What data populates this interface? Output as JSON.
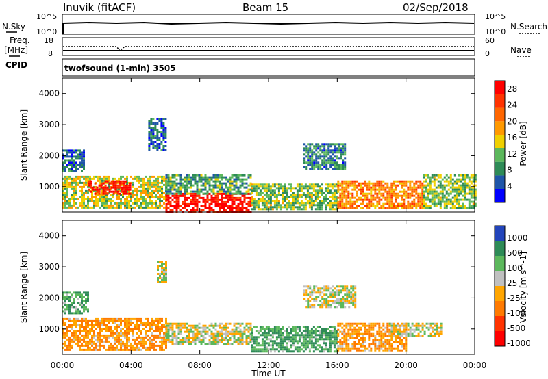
{
  "header": {
    "station": "Inuvik (fitACF)",
    "beam": "Beam 15",
    "date": "02/Sep/2018"
  },
  "nsky_panel": {
    "left_label": "N.Sky",
    "right_label": "N.Search",
    "left_ticks": [
      "10^5",
      "10^0"
    ],
    "right_ticks": [
      "10^5",
      "10^0"
    ]
  },
  "freq_panel": {
    "left_label_1": "Freq.",
    "left_label_2": "[MHz]",
    "left_label_3": "CPID",
    "right_label": "Nave",
    "left_ticks": [
      "18",
      "8"
    ],
    "right_ticks": [
      "60",
      "0"
    ]
  },
  "cpid_text": "twofsound (1-min) 3505",
  "x_axis": {
    "label": "Time UT",
    "ticks": [
      "00:00",
      "04:00",
      "08:00",
      "12:00",
      "16:00",
      "20:00",
      "00:00"
    ]
  },
  "y_axis": {
    "label": "Slant Range [km]",
    "ticks": [
      "1000",
      "2000",
      "3000",
      "4000"
    ]
  },
  "colors": {
    "power": [
      "#0000ff",
      "#1f55a8",
      "#2e8b57",
      "#5cb85c",
      "#f0d000",
      "#ff9900",
      "#ff6600",
      "#ff3300",
      "#ff0000"
    ],
    "velocity": [
      "#2244bb",
      "#2e8b57",
      "#5cb85c",
      "#c0c0c0",
      "#ffa500",
      "#ff7a00",
      "#ff3300",
      "#ff0000"
    ]
  },
  "chart_data": [
    {
      "type": "heatmap",
      "title": "Power",
      "xlabel": "Time UT",
      "ylabel": "Slant Range [km]",
      "xlim": [
        "00:00",
        "24:00"
      ],
      "ylim": [
        180,
        4500
      ],
      "colorbar": {
        "label": "Power [dB]",
        "ticks": [
          "4",
          "8",
          "12",
          "16",
          "20",
          "24",
          "28"
        ],
        "range": [
          0,
          30
        ]
      },
      "bands": [
        {
          "t0": 0.0,
          "t1": 6.0,
          "r0": 300,
          "r1": 1350,
          "value": 14
        },
        {
          "t0": 1.5,
          "t1": 4.0,
          "r0": 800,
          "r1": 1200,
          "value": 28
        },
        {
          "t0": 0.0,
          "t1": 1.3,
          "r0": 1500,
          "r1": 2200,
          "value": 6
        },
        {
          "t0": 6.0,
          "t1": 11.0,
          "r0": 200,
          "r1": 800,
          "value": 28
        },
        {
          "t0": 6.0,
          "t1": 11.0,
          "r0": 800,
          "r1": 1400,
          "value": 10
        },
        {
          "t0": 11.0,
          "t1": 16.0,
          "r0": 250,
          "r1": 1100,
          "value": 12
        },
        {
          "t0": 16.0,
          "t1": 21.0,
          "r0": 300,
          "r1": 1200,
          "value": 20
        },
        {
          "t0": 21.0,
          "t1": 24.0,
          "r0": 300,
          "r1": 1400,
          "value": 12
        },
        {
          "t0": 14.0,
          "t1": 16.5,
          "r0": 1600,
          "r1": 2400,
          "value": 8
        },
        {
          "t0": 5.0,
          "t1": 6.0,
          "r0": 2200,
          "r1": 3200,
          "value": 6
        }
      ]
    },
    {
      "type": "heatmap",
      "title": "Velocity",
      "xlabel": "Time UT",
      "ylabel": "Slant Range [km]",
      "xlim": [
        "00:00",
        "24:00"
      ],
      "ylim": [
        180,
        4500
      ],
      "colorbar": {
        "label": "Velocity [m s^-1]",
        "ticks": [
          "1000",
          "500",
          "100",
          "25",
          "-25",
          "-100",
          "-500",
          "-1000"
        ],
        "range": [
          -1000,
          1000
        ]
      },
      "bands": [
        {
          "t0": 0.0,
          "t1": 6.0,
          "r0": 300,
          "r1": 1350,
          "value": -100
        },
        {
          "t0": 0.0,
          "t1": 1.5,
          "r0": 1500,
          "r1": 2200,
          "value": 100
        },
        {
          "t0": 6.0,
          "t1": 11.0,
          "r0": 500,
          "r1": 1200,
          "value": 0
        },
        {
          "t0": 11.0,
          "t1": 16.0,
          "r0": 300,
          "r1": 1100,
          "value": 100
        },
        {
          "t0": 16.0,
          "t1": 20.0,
          "r0": 300,
          "r1": 1200,
          "value": -100
        },
        {
          "t0": 19.0,
          "t1": 22.0,
          "r0": 800,
          "r1": 1200,
          "value": 0
        },
        {
          "t0": 14.0,
          "t1": 17.0,
          "r0": 1700,
          "r1": 2400,
          "value": 0
        },
        {
          "t0": 5.5,
          "t1": 6.0,
          "r0": 2500,
          "r1": 3200,
          "value": 0
        }
      ]
    }
  ]
}
